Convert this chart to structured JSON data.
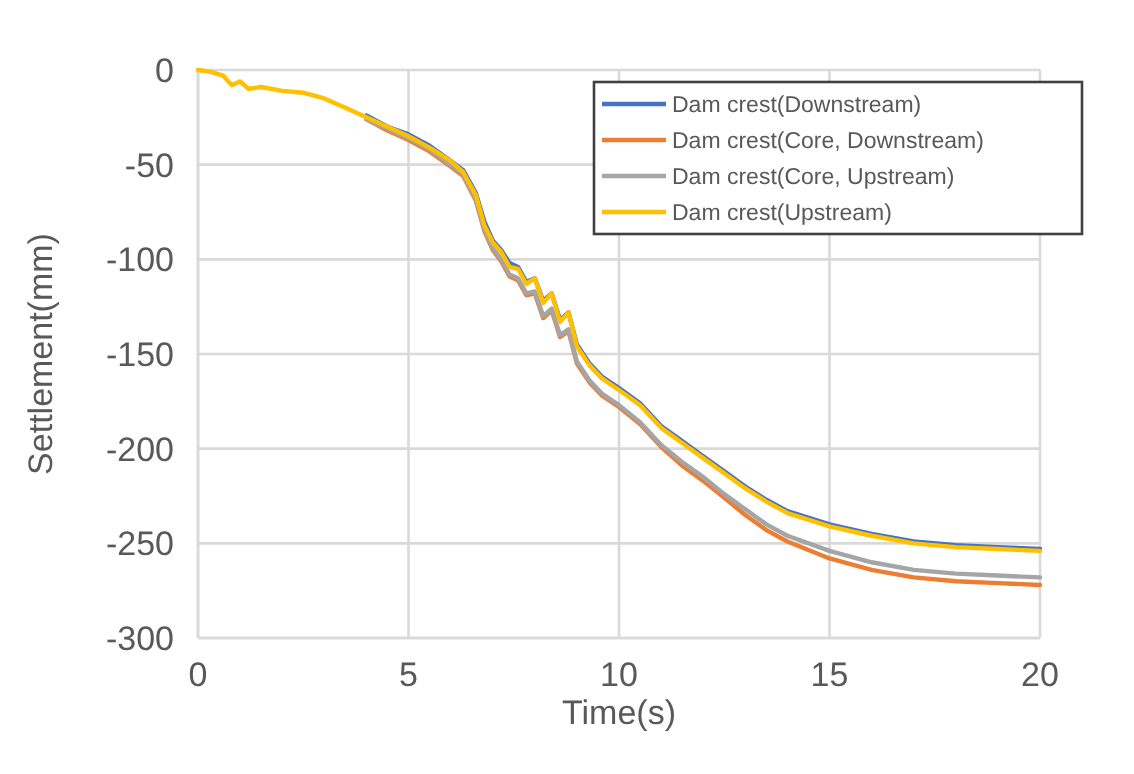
{
  "chart_data": {
    "type": "line",
    "xlabel": "Time(s)",
    "ylabel": "Settlement(mm)",
    "x": [
      0,
      0.3,
      0.6,
      0.8,
      1,
      1.2,
      1.5,
      2,
      2.5,
      3,
      3.5,
      4,
      4.5,
      5,
      5.5,
      6,
      6.3,
      6.6,
      6.8,
      7,
      7.2,
      7.4,
      7.6,
      7.8,
      8,
      8.2,
      8.4,
      8.6,
      8.8,
      9,
      9.3,
      9.6,
      10,
      10.5,
      11,
      11.5,
      12,
      12.5,
      13,
      13.5,
      14,
      15,
      16,
      17,
      18,
      19,
      20
    ],
    "series": [
      {
        "name": "Dam crest(Downstream)",
        "color": "#4472c4",
        "values": [
          null,
          null,
          null,
          null,
          null,
          null,
          null,
          null,
          null,
          null,
          null,
          -24,
          -30,
          -34,
          -40,
          -48,
          -53,
          -65,
          -80,
          -90,
          -95,
          -102,
          -104,
          -112,
          -110,
          -122,
          -118,
          -132,
          -128,
          -145,
          -155,
          -162,
          -168,
          -176,
          -188,
          -196,
          -204,
          -212,
          -220,
          -227,
          -233,
          -240,
          -245,
          -249,
          -251,
          -252,
          -253
        ]
      },
      {
        "name": "Dam crest(Core, Downstream)",
        "color": "#ed7d31",
        "values": [
          null,
          null,
          null,
          null,
          null,
          null,
          null,
          null,
          null,
          null,
          null,
          -26,
          -32,
          -37,
          -43,
          -51,
          -56,
          -69,
          -85,
          -95,
          -101,
          -109,
          -111,
          -119,
          -118,
          -131,
          -127,
          -141,
          -138,
          -155,
          -165,
          -172,
          -178,
          -187,
          -199,
          -209,
          -217,
          -226,
          -235,
          -243,
          -249,
          -258,
          -264,
          -268,
          -270,
          -271,
          -272
        ]
      },
      {
        "name": "Dam crest(Core, Upstream)",
        "color": "#a5a5a5",
        "values": [
          null,
          null,
          null,
          null,
          null,
          null,
          null,
          null,
          null,
          null,
          null,
          -26,
          -31,
          -36,
          -42,
          -50,
          -55,
          -68,
          -84,
          -94,
          -100,
          -108,
          -110,
          -118,
          -117,
          -130,
          -126,
          -140,
          -137,
          -154,
          -164,
          -171,
          -177,
          -186,
          -198,
          -207,
          -215,
          -224,
          -232,
          -240,
          -246,
          -254,
          -260,
          -264,
          -266,
          -267,
          -268
        ]
      },
      {
        "name": "Dam crest(Upstream)",
        "color": "#ffc000",
        "values": [
          0,
          -1,
          -3,
          -8,
          -6,
          -10,
          -9,
          -11,
          -12,
          -15,
          -20,
          -25,
          -30,
          -35,
          -41,
          -48,
          -54,
          -66,
          -82,
          -91,
          -96,
          -104,
          -105,
          -113,
          -110,
          -123,
          -118,
          -133,
          -128,
          -146,
          -156,
          -163,
          -169,
          -177,
          -189,
          -197,
          -205,
          -213,
          -221,
          -228,
          -234,
          -241,
          -246,
          -250,
          -252,
          -253,
          -254
        ]
      }
    ],
    "xlim": [
      0,
      20
    ],
    "xticks": [
      0,
      5,
      10,
      15,
      20
    ],
    "ylim": [
      -300,
      0
    ],
    "yticks": [
      0,
      -50,
      -100,
      -150,
      -200,
      -250,
      -300
    ],
    "grid": true,
    "legend": "top right",
    "marker": "none",
    "line_style": "solid"
  }
}
